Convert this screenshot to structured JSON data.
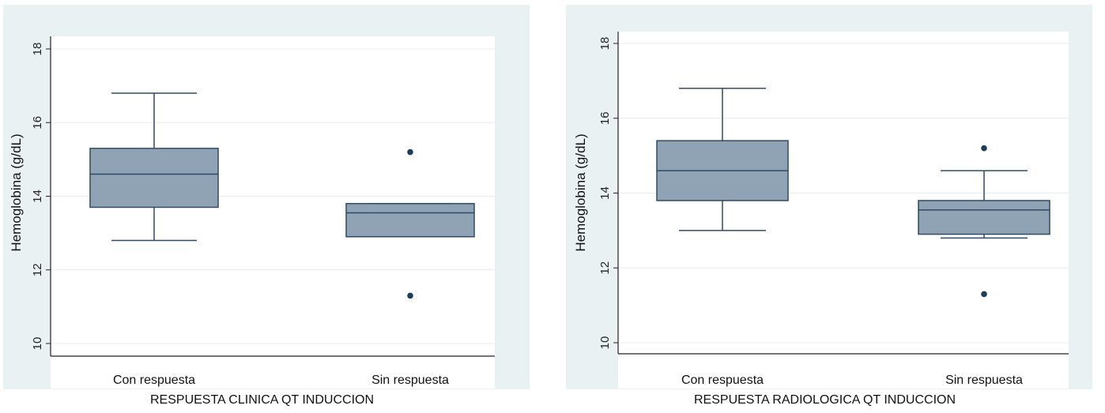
{
  "colors": {
    "panel_bg": "#eaf1f3",
    "plot_bg": "#ffffff",
    "box_fill": "#8fa3b5",
    "box_stroke": "#2f4a66",
    "outlier": "#1f3d5c",
    "grid": "#e6eef1",
    "axis": "#222222"
  },
  "chart_data": [
    {
      "type": "box",
      "xlabel": "RESPUESTA CLINICA QT INDUCCION",
      "ylabel": "Hemoglobina (g/dL)",
      "ylim": [
        10,
        18
      ],
      "yticks": [
        10,
        12,
        14,
        16,
        18
      ],
      "grid": true,
      "categories": [
        "Con respuesta",
        "Sin respuesta"
      ],
      "boxes": [
        {
          "category": "Con respuesta",
          "whisker_low": 12.8,
          "q1": 13.7,
          "median": 14.6,
          "q3": 15.3,
          "whisker_high": 16.8,
          "outliers": []
        },
        {
          "category": "Sin respuesta",
          "whisker_low": 12.9,
          "q1": 12.9,
          "median": 13.55,
          "q3": 13.8,
          "whisker_high": 13.8,
          "outliers": [
            15.2,
            11.3
          ]
        }
      ]
    },
    {
      "type": "box",
      "xlabel": "RESPUESTA RADIOLOGICA QT INDUCCION",
      "ylabel": "Hemoglobina (g/dL)",
      "ylim": [
        10,
        18
      ],
      "yticks": [
        10,
        12,
        14,
        16,
        18
      ],
      "grid": true,
      "categories": [
        "Con respuesta",
        "Sin respuesta"
      ],
      "boxes": [
        {
          "category": "Con respuesta",
          "whisker_low": 13.0,
          "q1": 13.8,
          "median": 14.6,
          "q3": 15.4,
          "whisker_high": 16.8,
          "outliers": []
        },
        {
          "category": "Sin respuesta",
          "whisker_low": 12.8,
          "q1": 12.9,
          "median": 13.55,
          "q3": 13.8,
          "whisker_high": 14.6,
          "outliers": [
            15.2,
            11.3
          ]
        }
      ]
    }
  ]
}
